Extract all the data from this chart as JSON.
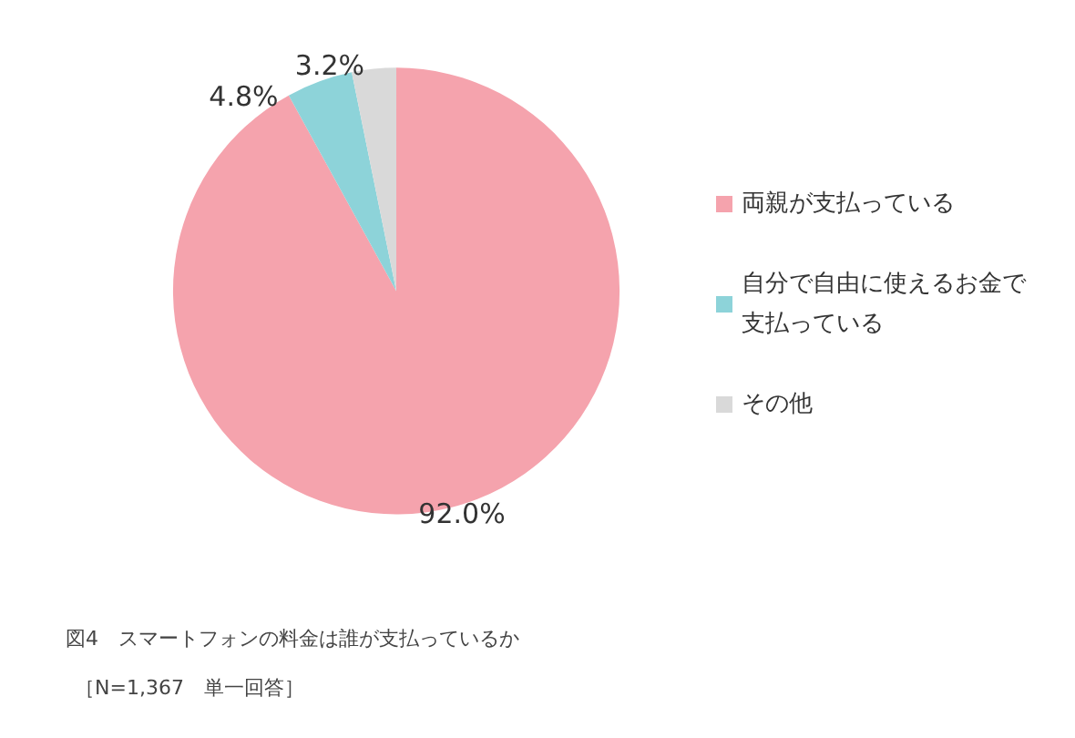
{
  "chart_data": {
    "type": "pie",
    "categories": [
      "両親が支払っている",
      "自分で自由に使えるお金で支払っている",
      "その他"
    ],
    "values": [
      92.0,
      4.8,
      3.2
    ],
    "value_labels": [
      "92.0%",
      "4.8%",
      "3.2%"
    ],
    "colors": [
      "#f5a3ad",
      "#8dd3d9",
      "#d9d9d9"
    ],
    "legend": "right",
    "annotations": [
      "図4　スマートフォンの料金は誰が支払っているか",
      "［N=1,367　単一回答］"
    ]
  }
}
